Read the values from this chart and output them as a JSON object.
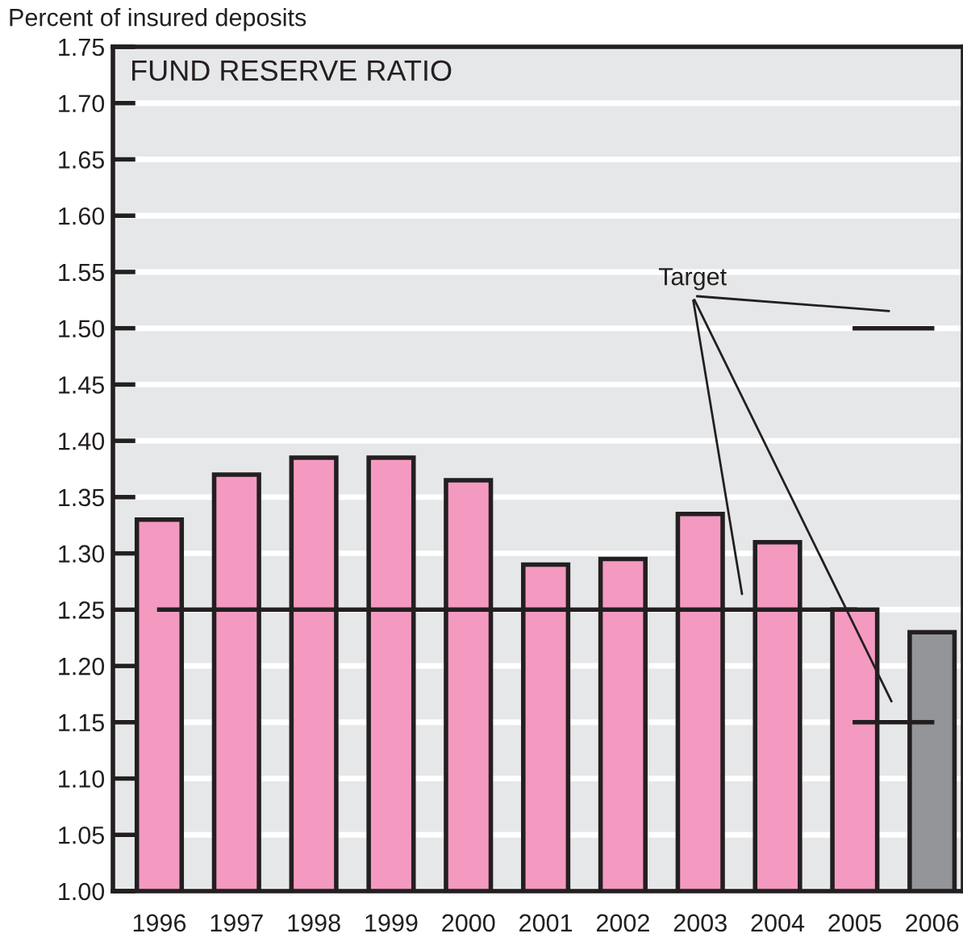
{
  "chart_data": {
    "type": "bar",
    "title": "FUND RESERVE RATIO",
    "ylabel": "Percent of insured deposits",
    "categories": [
      "1996",
      "1997",
      "1998",
      "1999",
      "2000",
      "2001",
      "2002",
      "2003",
      "2004",
      "2005",
      "2006"
    ],
    "series": [
      {
        "values": [
          1.33,
          1.37,
          1.385,
          1.385,
          1.365,
          1.29,
          1.295,
          1.335,
          1.31,
          1.25,
          1.23
        ],
        "colors": [
          "#f49ac1",
          "#f49ac1",
          "#f49ac1",
          "#f49ac1",
          "#f49ac1",
          "#f49ac1",
          "#f49ac1",
          "#f49ac1",
          "#f49ac1",
          "#f49ac1",
          "#939598"
        ]
      },
      {
        "type": "line",
        "values": [
          1.25,
          1.25,
          1.25,
          1.25,
          1.25,
          1.25,
          1.25,
          1.25,
          1.25,
          1.25,
          null
        ],
        "color": "#231f20"
      },
      {
        "type": "line",
        "values": [
          null,
          null,
          null,
          null,
          null,
          null,
          null,
          null,
          null,
          1.15,
          1.15
        ],
        "color": "#231f20"
      },
      {
        "type": "line",
        "values": [
          null,
          null,
          null,
          null,
          null,
          null,
          null,
          null,
          null,
          1.5,
          1.5
        ],
        "color": "#231f20"
      }
    ],
    "annotations": [
      "Target"
    ],
    "ylim": [
      1.0,
      1.75
    ],
    "yticks": [
      {
        "value": 1.0,
        "label": "1.00"
      },
      1.05,
      {
        "value": 1.1,
        "label": "1.10"
      },
      1.15,
      {
        "value": 1.2,
        "label": "1.20"
      },
      1.25,
      {
        "value": 1.3,
        "label": "1.30"
      },
      1.35,
      {
        "value": 1.4,
        "label": "1.40"
      },
      1.45,
      {
        "value": 1.5,
        "label": "1.50"
      },
      1.55,
      {
        "value": 1.6,
        "label": "1.60"
      },
      1.65,
      {
        "value": 1.7,
        "label": "1.70"
      },
      1.75
    ],
    "grid": "y"
  }
}
